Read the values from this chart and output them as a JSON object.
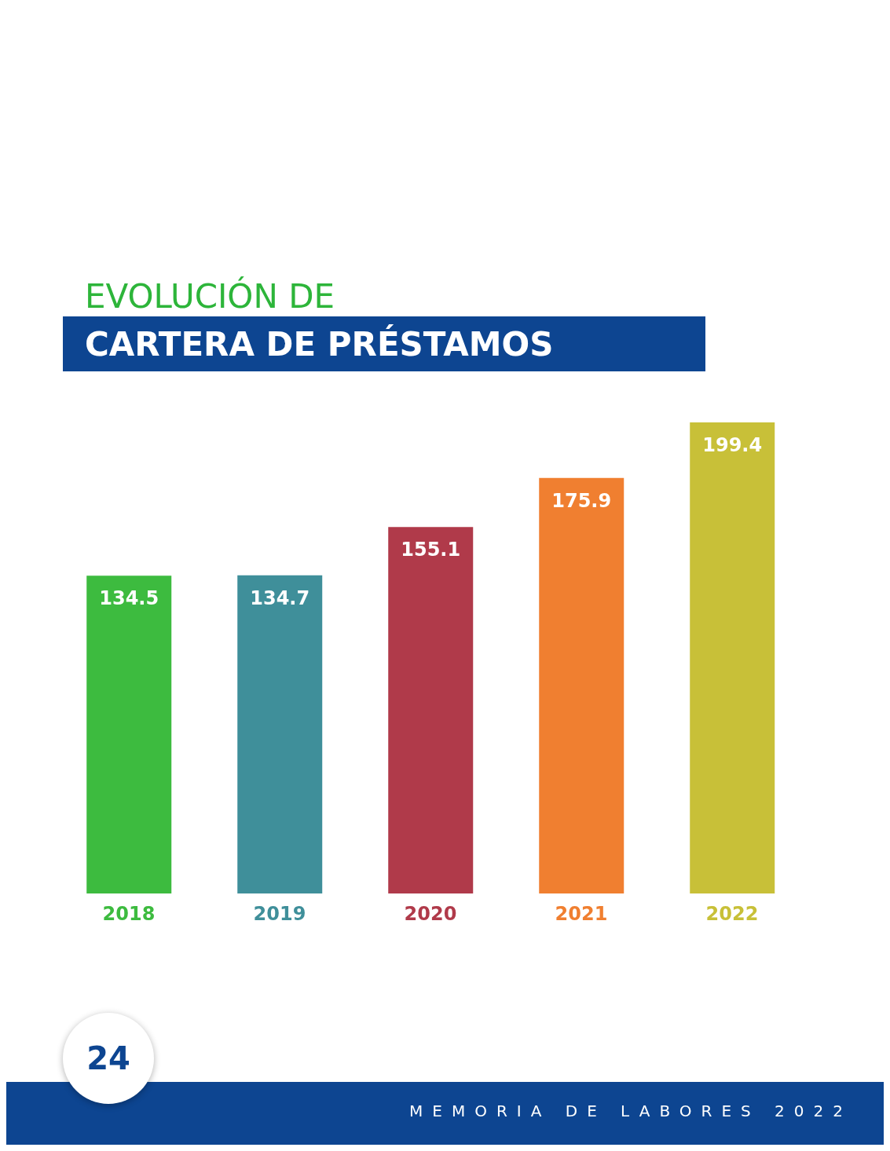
{
  "chart_data": {
    "type": "bar",
    "title": "EVOLUCIÓN DE",
    "subtitle": "CARTERA DE PRÉSTAMOS",
    "categories": [
      "2018",
      "2019",
      "2020",
      "2021",
      "2022"
    ],
    "values": [
      134.5,
      134.7,
      155.1,
      175.9,
      199.4
    ],
    "colors": [
      "#3dbb3f",
      "#3f8f9a",
      "#b03a4a",
      "#f07f30",
      "#c8c038"
    ],
    "data_labels": true,
    "annotations": [
      "24",
      "MEMORIA DE LABORES 2022"
    ]
  }
}
